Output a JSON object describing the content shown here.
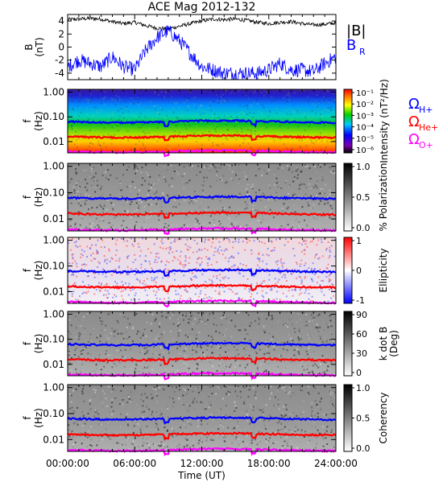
{
  "chart_data": {
    "type": "heatmap",
    "title": "ACE Mag 2012-132",
    "xlabel": "Time (UT)",
    "x_ticks": [
      "00:00:00",
      "06:00:00",
      "12:00:00",
      "18:00:00",
      "24:00:00"
    ],
    "xlim_hours": [
      0,
      24
    ],
    "panels": [
      {
        "id": "field",
        "type": "line",
        "ylabel": [
          "B",
          "(nT)"
        ],
        "ylim": [
          -5,
          5
        ],
        "y_ticks": [
          "4",
          "2",
          "0",
          "-2",
          "-4"
        ],
        "y_tick_values": [
          4,
          2,
          0,
          -2,
          -4
        ],
        "series": [
          {
            "name": "|B|",
            "color": "#000000",
            "hours": [
              0,
              1,
              2,
              3,
              4,
              5,
              6,
              7,
              8,
              9,
              10,
              11,
              12,
              13,
              14,
              15,
              16,
              17,
              18,
              19,
              20,
              21,
              22,
              23,
              24
            ],
            "values": [
              4.2,
              4.3,
              4.4,
              4.3,
              3.9,
              3.6,
              3.8,
              3.3,
              2.9,
              2.8,
              3.2,
              3.6,
              4.0,
              4.3,
              4.2,
              4.3,
              4.1,
              3.8,
              3.6,
              3.8,
              3.9,
              3.6,
              3.4,
              3.5,
              3.7
            ]
          },
          {
            "name": "B",
            "subscript": "R",
            "color": "#0000ff",
            "hours": [
              0,
              1,
              2,
              3,
              4,
              5,
              6,
              7,
              8,
              9,
              10,
              11,
              12,
              13,
              14,
              15,
              16,
              17,
              18,
              19,
              20,
              21,
              22,
              23,
              24
            ],
            "values": [
              -3.0,
              -2.0,
              -2.5,
              -3.0,
              -1.5,
              -3.0,
              -3.5,
              -0.5,
              1.5,
              2.5,
              1.0,
              -1.0,
              -3.0,
              -3.5,
              -4.0,
              -4.0,
              -4.0,
              -4.0,
              -3.5,
              -2.5,
              -3.5,
              -3.5,
              -3.8,
              -2.5,
              -1.5
            ]
          }
        ]
      },
      {
        "id": "intensity",
        "type": "heatmap",
        "ylabel": [
          "f",
          "(Hz)"
        ],
        "y_ticks": [
          "1.00",
          "0.10",
          "0.01"
        ],
        "colorbar": {
          "label": "Intensity (nT²/Hz)",
          "ticks": [
            "10⁻¹",
            "10⁻²",
            "10⁻³",
            "10⁻⁴",
            "10⁻⁵",
            "10⁻⁶"
          ],
          "scale": "log",
          "colormap": "rainbow"
        },
        "legend": [
          {
            "text": "Ω",
            "sub": "H+",
            "color": "#0000ff"
          },
          {
            "text": "Ω",
            "sub": "He+",
            "color": "#ff0000"
          },
          {
            "text": "Ω",
            "sub": "O+",
            "color": "#ff00ff"
          }
        ]
      },
      {
        "id": "polarization",
        "type": "heatmap",
        "ylabel": [
          "f",
          "(Hz)"
        ],
        "y_ticks": [
          "1.00",
          "0.10",
          "0.01"
        ],
        "colorbar": {
          "label": "% Polarization",
          "ticks": [
            "1.0",
            "0.5",
            "0.0"
          ],
          "colormap": "gray"
        }
      },
      {
        "id": "ellipticity",
        "type": "heatmap",
        "ylabel": [
          "f",
          "(Hz)"
        ],
        "y_ticks": [
          "1.00",
          "0.10",
          "0.01"
        ],
        "colorbar": {
          "label": "Ellipticity",
          "ticks": [
            "1",
            "0",
            "-1"
          ],
          "colormap": "blue-white-red"
        }
      },
      {
        "id": "kdotb",
        "type": "heatmap",
        "ylabel": [
          "f",
          "(Hz)"
        ],
        "y_ticks": [
          "1.00",
          "0.10",
          "0.01"
        ],
        "colorbar": {
          "label": [
            "k dot B",
            "(Deg)"
          ],
          "ticks": [
            "90",
            "60",
            "30",
            "0"
          ],
          "colormap": "gray"
        }
      },
      {
        "id": "coherency",
        "type": "heatmap",
        "ylabel": [
          "f",
          "(Hz)"
        ],
        "y_ticks": [
          "1.00",
          "0.10",
          "0.01"
        ],
        "colorbar": {
          "label": "Coherency",
          "ticks": [
            "1.0",
            "0.5",
            "0.0"
          ],
          "colormap": "gray"
        }
      }
    ],
    "gyrofrequency_lines": [
      {
        "ion": "H+",
        "color": "#0000ff",
        "freq_hz": 0.064
      },
      {
        "ion": "He+",
        "color": "#ff0000",
        "freq_hz": 0.016
      },
      {
        "ion": "O+",
        "color": "#ff00ff",
        "freq_hz": 0.004
      }
    ]
  }
}
